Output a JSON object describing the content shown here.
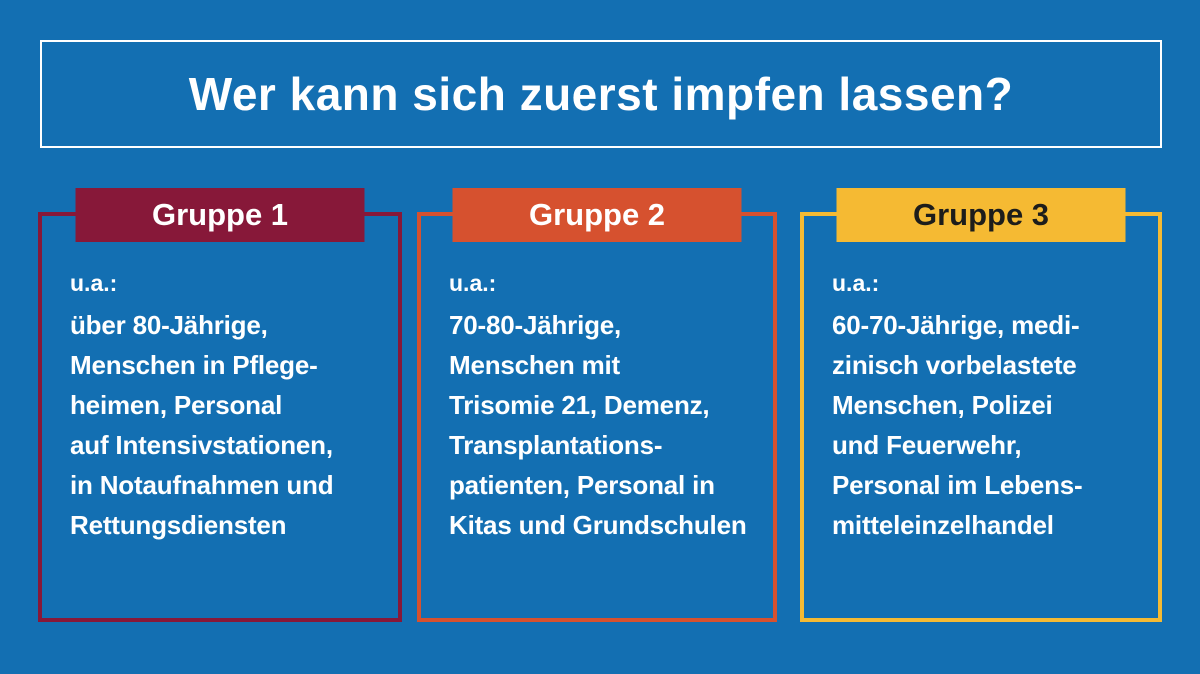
{
  "title": "Wer kann sich zuerst impfen lassen?",
  "colors": {
    "background": "#136fb2",
    "title_border": "#ffffff",
    "text": "#ffffff",
    "group1": "#871839",
    "group2": "#d6512f",
    "group3": "#f5ba33",
    "group3_text": "#1d1d1b"
  },
  "groups": [
    {
      "label": "Gruppe 1",
      "prefix": "u.a.:",
      "body": "über 80-Jährige,\nMenschen in Pflege-\nheimen, Personal\nauf Intensivstationen,\nin Notaufnahmen und\nRettungsdiensten"
    },
    {
      "label": "Gruppe 2",
      "prefix": "u.a.:",
      "body": "70-80-Jährige,\nMenschen mit\nTrisomie 21, Demenz,\nTransplantations-\npatienten, Personal in\nKitas und Grundschulen"
    },
    {
      "label": "Gruppe 3",
      "prefix": "u.a.:",
      "body": "60-70-Jährige, medi-\nzinisch vorbelastete\nMenschen, Polizei\nund Feuerwehr,\nPersonal im Lebens-\nmitteleinzelhandel"
    }
  ]
}
